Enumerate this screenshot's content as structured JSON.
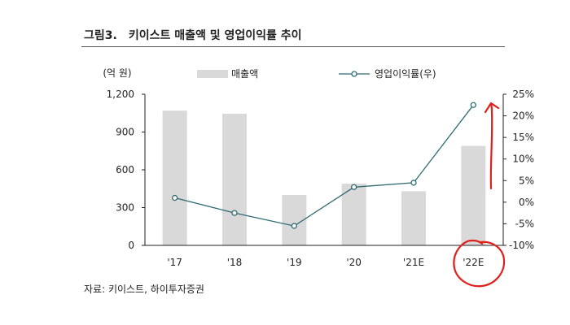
{
  "figure": {
    "number": "그림3.",
    "title": "키이스트 매출액 및 영업이익률 추이",
    "source": "자료: 키이스트, 하이투자증권"
  },
  "colors": {
    "bar": "#d9d9d9",
    "line": "#2e6b73",
    "annotation": "#e0201b"
  },
  "chart_data": {
    "type": "bar",
    "categories": [
      "'17",
      "'18",
      "'19",
      "'20",
      "'21E",
      "'22E"
    ],
    "left_axis": {
      "unit_label": "(억 원)",
      "ticks": [
        "0",
        "300",
        "600",
        "900",
        "1,200"
      ],
      "range": [
        0,
        1200
      ]
    },
    "right_axis": {
      "ticks": [
        "-10%",
        "-5%",
        "0%",
        "5%",
        "10%",
        "15%",
        "20%",
        "25%"
      ],
      "range": [
        -10,
        25
      ]
    },
    "series": [
      {
        "name": "매출액",
        "type": "bar",
        "axis": "left",
        "values": [
          1070,
          1045,
          400,
          490,
          430,
          790
        ]
      },
      {
        "name": "영업이익률(우)",
        "type": "line",
        "axis": "right",
        "values": [
          1.0,
          -2.5,
          -5.5,
          3.5,
          4.5,
          22.5
        ]
      }
    ],
    "legend_position": "top",
    "grid": false,
    "annotations": [
      "red upward arrow beside the 25% axis",
      "red hand-drawn circle around the '22E label"
    ]
  }
}
